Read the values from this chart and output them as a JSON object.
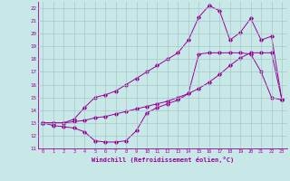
{
  "xlabel": "Windchill (Refroidissement éolien,°C)",
  "background_color": "#c8e8e8",
  "grid_color": "#a8c8c8",
  "line_color": "#990099",
  "xlim": [
    -0.5,
    23.5
  ],
  "ylim": [
    11,
    22.5
  ],
  "xticks": [
    0,
    1,
    2,
    3,
    4,
    5,
    6,
    7,
    8,
    9,
    10,
    11,
    12,
    13,
    14,
    15,
    16,
    17,
    18,
    19,
    20,
    21,
    22,
    23
  ],
  "yticks": [
    11,
    12,
    13,
    14,
    15,
    16,
    17,
    18,
    19,
    20,
    21,
    22
  ],
  "line1_x": [
    0,
    1,
    2,
    3,
    4,
    5,
    6,
    7,
    8,
    9,
    10,
    11,
    12,
    13,
    14,
    15,
    16,
    17,
    18,
    19,
    20,
    21,
    22,
    23
  ],
  "line1_y": [
    13.0,
    12.8,
    12.7,
    12.6,
    12.3,
    11.6,
    11.5,
    11.5,
    11.6,
    12.4,
    13.8,
    14.2,
    14.5,
    14.8,
    15.3,
    18.4,
    18.5,
    18.5,
    18.5,
    18.5,
    18.4,
    17.0,
    15.0,
    14.8
  ],
  "line2_x": [
    0,
    1,
    2,
    3,
    4,
    5,
    6,
    7,
    8,
    9,
    10,
    11,
    12,
    13,
    14,
    15,
    16,
    17,
    18,
    19,
    20,
    21,
    22,
    23
  ],
  "line2_y": [
    13.0,
    13.0,
    13.0,
    13.1,
    13.2,
    13.4,
    13.5,
    13.7,
    13.9,
    14.1,
    14.3,
    14.5,
    14.7,
    15.0,
    15.3,
    15.7,
    16.2,
    16.8,
    17.5,
    18.1,
    18.5,
    18.5,
    18.5,
    14.8
  ],
  "line3_x": [
    0,
    1,
    2,
    3,
    4,
    5,
    6,
    7,
    8,
    9,
    10,
    11,
    12,
    13,
    14,
    15,
    16,
    17,
    18,
    19,
    20,
    21,
    22,
    23
  ],
  "line3_y": [
    13.0,
    13.0,
    13.0,
    13.3,
    14.2,
    15.0,
    15.2,
    15.5,
    16.0,
    16.5,
    17.0,
    17.5,
    18.0,
    18.5,
    19.5,
    21.3,
    22.2,
    21.8,
    19.5,
    20.1,
    21.2,
    19.5,
    19.8,
    14.8
  ]
}
